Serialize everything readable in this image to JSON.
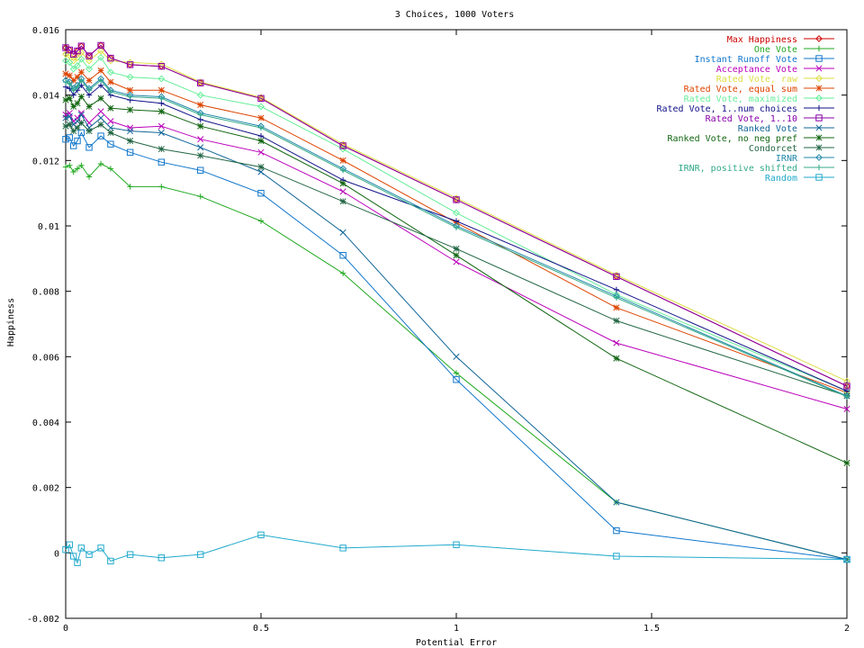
{
  "chart_data": {
    "type": "line",
    "title": "3 Choices, 1000 Voters",
    "xlabel": "Potential Error",
    "ylabel": "Happiness",
    "xlim": [
      0,
      2
    ],
    "ylim": [
      -0.002,
      0.016
    ],
    "x_ticks": [
      {
        "value": 0,
        "label": "0"
      },
      {
        "value": 0.5,
        "label": "0.5"
      },
      {
        "value": 1,
        "label": "1"
      },
      {
        "value": 1.5,
        "label": "1.5"
      },
      {
        "value": 2,
        "label": "2"
      }
    ],
    "y_ticks": [
      {
        "value": -0.002,
        "label": "-0.002"
      },
      {
        "value": 0,
        "label": "0"
      },
      {
        "value": 0.002,
        "label": "0.002"
      },
      {
        "value": 0.004,
        "label": "0.004"
      },
      {
        "value": 0.006,
        "label": "0.006"
      },
      {
        "value": 0.008,
        "label": "0.008"
      },
      {
        "value": 0.01,
        "label": "0.01"
      },
      {
        "value": 0.012,
        "label": "0.012"
      },
      {
        "value": 0.014,
        "label": "0.014"
      },
      {
        "value": 0.016,
        "label": "0.016"
      }
    ],
    "grid": false,
    "legend_position": "top-right",
    "x": [
      0,
      0.01,
      0.02,
      0.03,
      0.04,
      0.06,
      0.09,
      0.115,
      0.165,
      0.245,
      0.345,
      0.5,
      0.71,
      1.0,
      1.41,
      2.0
    ],
    "series": [
      {
        "name": "Max Happiness",
        "color": "#cc0000",
        "marker": "diamond",
        "values": [
          0.01545,
          0.01538,
          0.01525,
          0.01535,
          0.0155,
          0.0152,
          0.01552,
          0.01513,
          0.01493,
          0.01488,
          0.01437,
          0.0139,
          0.01245,
          0.0108,
          0.00845,
          0.0051
        ]
      },
      {
        "name": "One Vote",
        "color": "#22aa22",
        "marker": "plus",
        "values": [
          0.0118,
          0.01185,
          0.01165,
          0.01175,
          0.01185,
          0.0115,
          0.0119,
          0.01175,
          0.0112,
          0.0112,
          0.0109,
          0.01015,
          0.00855,
          0.0055,
          0.00155,
          -0.0002
        ]
      },
      {
        "name": "Instant Runoff Vote",
        "color": "#1177cc",
        "marker": "square",
        "values": [
          0.01265,
          0.0127,
          0.01245,
          0.0126,
          0.01285,
          0.0124,
          0.01275,
          0.0125,
          0.01225,
          0.01195,
          0.0117,
          0.011,
          0.0091,
          0.0053,
          0.00068,
          -0.0002
        ]
      },
      {
        "name": "Acceptance Vote",
        "color": "#bb00bb",
        "marker": "x",
        "values": [
          0.0134,
          0.01345,
          0.0132,
          0.0133,
          0.01345,
          0.01315,
          0.0135,
          0.0132,
          0.013,
          0.01305,
          0.01265,
          0.01225,
          0.01105,
          0.0089,
          0.00642,
          0.0044
        ]
      },
      {
        "name": "Rated Vote, raw",
        "color": "#dddd44",
        "marker": "diamond",
        "values": [
          0.01525,
          0.0152,
          0.01505,
          0.01515,
          0.0153,
          0.01505,
          0.01535,
          0.01505,
          0.015,
          0.01495,
          0.0144,
          0.01393,
          0.0125,
          0.01085,
          0.0085,
          0.00525
        ]
      },
      {
        "name": "Rated Vote, equal sum",
        "color": "#dd4400",
        "marker": "star",
        "values": [
          0.01465,
          0.0146,
          0.01445,
          0.01455,
          0.0147,
          0.01445,
          0.01475,
          0.0144,
          0.01415,
          0.01415,
          0.0137,
          0.0133,
          0.012,
          0.0101,
          0.0075,
          0.0049
        ]
      },
      {
        "name": "Rated Vote, maximized",
        "color": "#66ee99",
        "marker": "diamond",
        "values": [
          0.01505,
          0.015,
          0.0148,
          0.0149,
          0.0151,
          0.0148,
          0.01515,
          0.0147,
          0.01455,
          0.0145,
          0.014,
          0.01365,
          0.01235,
          0.0104,
          0.0079,
          0.00495
        ]
      },
      {
        "name": "Rated Vote, 1..num choices",
        "color": "#111188",
        "marker": "plus",
        "values": [
          0.01425,
          0.0142,
          0.014,
          0.01415,
          0.0143,
          0.014,
          0.0143,
          0.014,
          0.01385,
          0.01375,
          0.01325,
          0.01275,
          0.0114,
          0.01015,
          0.00805,
          0.00495
        ]
      },
      {
        "name": "Rated Vote, 1..10",
        "color": "#8800aa",
        "marker": "square",
        "values": [
          0.01545,
          0.01538,
          0.01525,
          0.01535,
          0.0155,
          0.0152,
          0.01552,
          0.01513,
          0.01493,
          0.01488,
          0.01437,
          0.0139,
          0.01245,
          0.0108,
          0.00845,
          0.0051
        ]
      },
      {
        "name": "Ranked Vote",
        "color": "#116699",
        "marker": "x",
        "values": [
          0.0133,
          0.01335,
          0.0131,
          0.0132,
          0.0134,
          0.013,
          0.0133,
          0.013,
          0.0129,
          0.01285,
          0.0124,
          0.01165,
          0.0098,
          0.006,
          0.00155,
          -0.0002
        ]
      },
      {
        "name": "Ranked Vote, no neg pref",
        "color": "#116611",
        "marker": "star",
        "values": [
          0.01385,
          0.0139,
          0.01365,
          0.01375,
          0.01395,
          0.01365,
          0.0139,
          0.0136,
          0.01355,
          0.0135,
          0.01305,
          0.0126,
          0.0113,
          0.0091,
          0.00595,
          0.00275
        ]
      },
      {
        "name": "Condorcet",
        "color": "#226644",
        "marker": "star",
        "values": [
          0.01305,
          0.0131,
          0.0129,
          0.013,
          0.01315,
          0.0129,
          0.0131,
          0.01285,
          0.0126,
          0.01235,
          0.01215,
          0.0118,
          0.01075,
          0.0093,
          0.0071,
          0.0048
        ]
      },
      {
        "name": "IRNR",
        "color": "#2288aa",
        "marker": "diamond",
        "values": [
          0.01445,
          0.0144,
          0.0142,
          0.0143,
          0.0145,
          0.0142,
          0.0145,
          0.01415,
          0.014,
          0.01395,
          0.01345,
          0.01305,
          0.01175,
          0.01,
          0.00785,
          0.0048
        ]
      },
      {
        "name": "IRNR, positive shifted",
        "color": "#33aa88",
        "marker": "plus",
        "values": [
          0.0144,
          0.01435,
          0.01415,
          0.01425,
          0.01445,
          0.01415,
          0.01445,
          0.0141,
          0.01395,
          0.0139,
          0.0134,
          0.013,
          0.0117,
          0.00995,
          0.0078,
          0.00478
        ]
      },
      {
        "name": "Random",
        "color": "#22aacc",
        "marker": "square",
        "values": [
          0.0001,
          0.00025,
          -0.0001,
          -0.0003,
          0.00015,
          -5e-05,
          0.00015,
          -0.00025,
          -5e-05,
          -0.00015,
          -5e-05,
          0.00055,
          0.00015,
          0.00025,
          -0.0001,
          -0.0002
        ]
      }
    ]
  }
}
